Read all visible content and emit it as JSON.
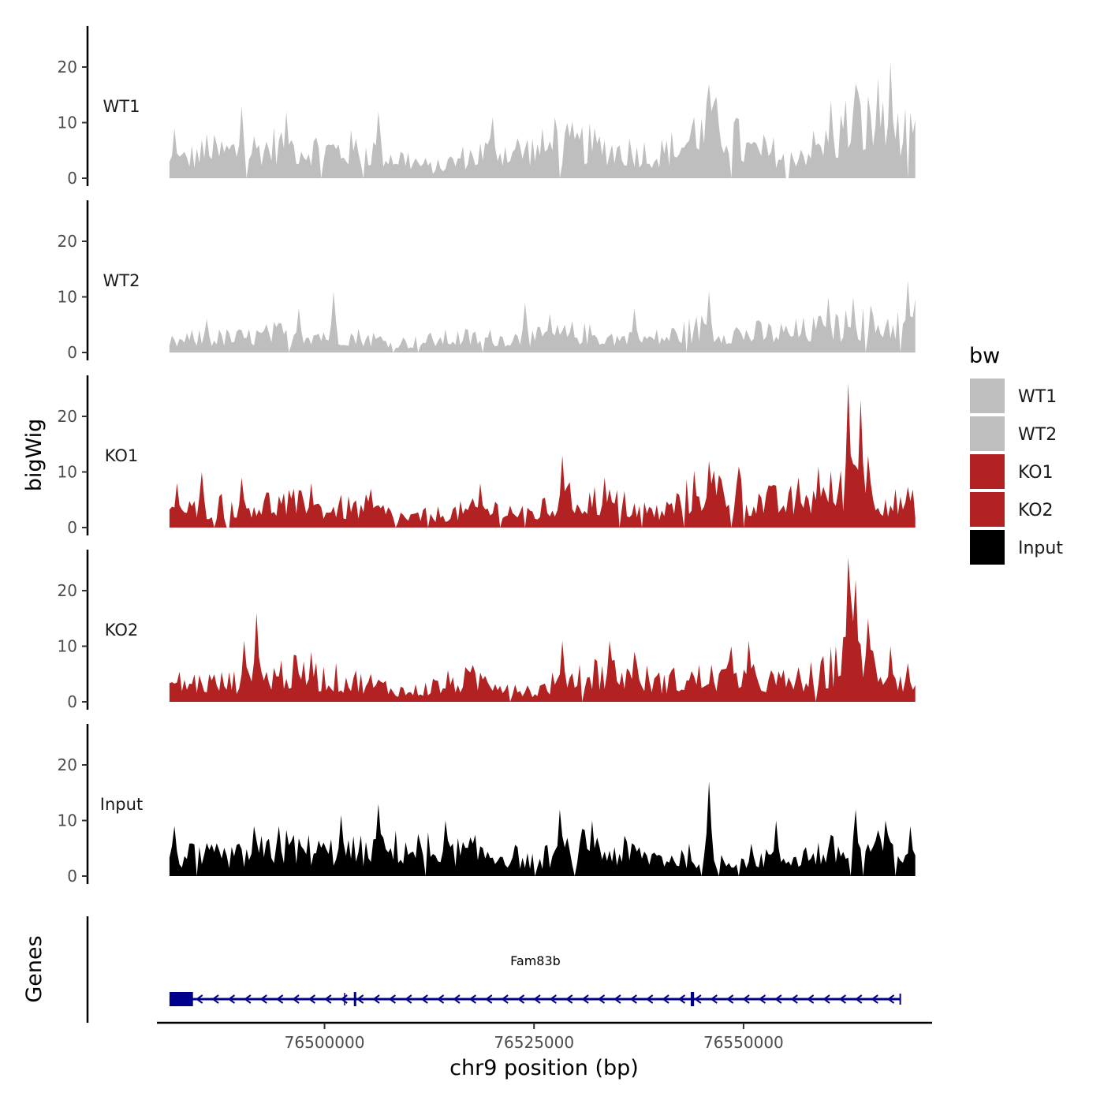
{
  "chart_data": {
    "type": "area",
    "xlabel": "chr9 position (bp)",
    "ylabel_tracks": "bigWig",
    "ylabel_genes": "Genes",
    "chromosome": "chr9",
    "xlim": [
      76480000,
      76572500
    ],
    "data_range": [
      76481500,
      76570500
    ],
    "xticks": [
      76500000,
      76525000,
      76550000
    ],
    "xtick_labels": [
      "76500000",
      "76525000",
      "76550000"
    ],
    "ylim": [
      0,
      28
    ],
    "yticks": [
      0,
      10,
      20
    ],
    "ytick_labels": [
      "0",
      "10",
      "20"
    ],
    "legend": {
      "title": "bw",
      "position": "right",
      "entries": [
        {
          "label": "WT1",
          "color": "#bebebe"
        },
        {
          "label": "WT2",
          "color": "#bebebe"
        },
        {
          "label": "KO1",
          "color": "#b22222"
        },
        {
          "label": "KO2",
          "color": "#b22222"
        },
        {
          "label": "Input",
          "color": "#000000"
        }
      ]
    },
    "series": [
      {
        "name": "WT1",
        "color": "#bebebe",
        "x": [
          76481500,
          76485000,
          76490000,
          76495000,
          76500000,
          76505000,
          76510000,
          76513000,
          76516000,
          76520000,
          76525000,
          76530000,
          76535000,
          76540000,
          76545000,
          76548000,
          76550000,
          76555000,
          76560000,
          76563000,
          76565000,
          76568000,
          76570500
        ],
        "values": [
          3,
          5,
          6,
          7,
          6,
          6,
          4,
          2,
          4,
          6,
          6,
          7,
          6,
          5,
          9,
          11,
          6,
          5,
          7,
          12,
          11,
          9,
          8
        ],
        "peaks": [
          [
            76482000,
            9
          ],
          [
            76486000,
            8
          ],
          [
            76490000,
            13
          ],
          [
            76495500,
            12
          ],
          [
            76506500,
            12
          ],
          [
            76520000,
            11
          ],
          [
            76527500,
            11
          ],
          [
            76544000,
            11
          ],
          [
            76546000,
            17
          ],
          [
            76560500,
            14
          ],
          [
            76563500,
            17
          ],
          [
            76566000,
            18
          ],
          [
            76567500,
            21
          ]
        ]
      },
      {
        "name": "WT2",
        "color": "#bebebe",
        "x": [
          76481500,
          76485000,
          76490000,
          76495000,
          76500000,
          76505000,
          76510000,
          76515000,
          76520000,
          76525000,
          76530000,
          76535000,
          76540000,
          76545000,
          76550000,
          76555000,
          76560000,
          76565000,
          76568000,
          76570500
        ],
        "values": [
          2,
          3,
          3,
          4,
          4,
          3,
          2,
          3,
          3,
          3,
          4,
          3,
          3,
          5,
          4,
          4,
          5,
          6,
          6,
          7
        ],
        "peaks": [
          [
            76486000,
            6
          ],
          [
            76497000,
            8
          ],
          [
            76501000,
            11
          ],
          [
            76524000,
            9
          ],
          [
            76527000,
            7
          ],
          [
            76537000,
            8
          ],
          [
            76546000,
            11
          ],
          [
            76560000,
            10
          ],
          [
            76563000,
            10
          ],
          [
            76569500,
            13
          ]
        ]
      },
      {
        "name": "KO1",
        "color": "#b22222",
        "x": [
          76481500,
          76485000,
          76490000,
          76495000,
          76500000,
          76505000,
          76510000,
          76515000,
          76520000,
          76525000,
          76530000,
          76535000,
          76540000,
          76543000,
          76545000,
          76548000,
          76550000,
          76555000,
          76558000,
          76560000,
          76562000,
          76563500,
          76565000,
          76566500,
          76568000,
          76570500
        ],
        "values": [
          3,
          4,
          5,
          5,
          4,
          4,
          2,
          3,
          4,
          3,
          6,
          5,
          3,
          6,
          8,
          8,
          6,
          5,
          6,
          7,
          8,
          14,
          10,
          6,
          5,
          5
        ],
        "peaks": [
          [
            76482500,
            8
          ],
          [
            76485500,
            10
          ],
          [
            76490000,
            9
          ],
          [
            76498500,
            8
          ],
          [
            76505500,
            7
          ],
          [
            76518500,
            8
          ],
          [
            76528500,
            13
          ],
          [
            76533500,
            9
          ],
          [
            76546000,
            12
          ],
          [
            76549500,
            11
          ],
          [
            76556500,
            9
          ],
          [
            76559000,
            11
          ],
          [
            76562500,
            26
          ],
          [
            76564000,
            23
          ]
        ]
      },
      {
        "name": "KO2",
        "color": "#b22222",
        "x": [
          76481500,
          76485000,
          76490000,
          76495000,
          76500000,
          76505000,
          76510000,
          76515000,
          76520000,
          76525000,
          76530000,
          76535000,
          76540000,
          76545000,
          76550000,
          76555000,
          76558000,
          76560000,
          76561500,
          76562500,
          76564000,
          76565500,
          76567000,
          76568500,
          76570500
        ],
        "values": [
          4,
          4,
          4,
          6,
          5,
          4,
          2,
          4,
          5,
          2,
          6,
          6,
          4,
          5,
          5,
          4,
          5,
          6,
          9,
          14,
          12,
          8,
          6,
          5,
          4
        ],
        "peaks": [
          [
            76490500,
            11
          ],
          [
            76492000,
            16
          ],
          [
            76498500,
            9
          ],
          [
            76528500,
            11
          ],
          [
            76534000,
            11
          ],
          [
            76537000,
            9
          ],
          [
            76548500,
            10
          ],
          [
            76550500,
            11
          ],
          [
            76562500,
            26
          ],
          [
            76563500,
            22
          ],
          [
            76565000,
            15
          ],
          [
            76567500,
            10
          ],
          [
            76569500,
            7
          ]
        ]
      },
      {
        "name": "Input",
        "color": "#000000",
        "x": [
          76481500,
          76485000,
          76490000,
          76495000,
          76500000,
          76505000,
          76510000,
          76515000,
          76520000,
          76525000,
          76530000,
          76535000,
          76540000,
          76545000,
          76550000,
          76555000,
          76560000,
          76565000,
          76568000,
          76570500
        ],
        "values": [
          4,
          4,
          4,
          6,
          5,
          5,
          6,
          5,
          5,
          3,
          6,
          5,
          4,
          4,
          4,
          4,
          5,
          6,
          5,
          5
        ],
        "peaks": [
          [
            76482000,
            9
          ],
          [
            76491500,
            9
          ],
          [
            76494500,
            9
          ],
          [
            76502000,
            11
          ],
          [
            76506500,
            13
          ],
          [
            76514500,
            10
          ],
          [
            76528000,
            12
          ],
          [
            76532000,
            10
          ],
          [
            76546000,
            17
          ],
          [
            76554000,
            10
          ],
          [
            76563500,
            12
          ],
          [
            76567000,
            10
          ],
          [
            76570000,
            9
          ]
        ]
      }
    ],
    "gene_track": {
      "gene": "Fam83b",
      "strand": "-",
      "color": "#00008b",
      "start": 76481500,
      "end": 76568700,
      "exons": [
        [
          76481500,
          76484300
        ],
        [
          76503500,
          76503700
        ],
        [
          76543700,
          76544100
        ]
      ],
      "markers": [
        76502400
      ]
    }
  }
}
